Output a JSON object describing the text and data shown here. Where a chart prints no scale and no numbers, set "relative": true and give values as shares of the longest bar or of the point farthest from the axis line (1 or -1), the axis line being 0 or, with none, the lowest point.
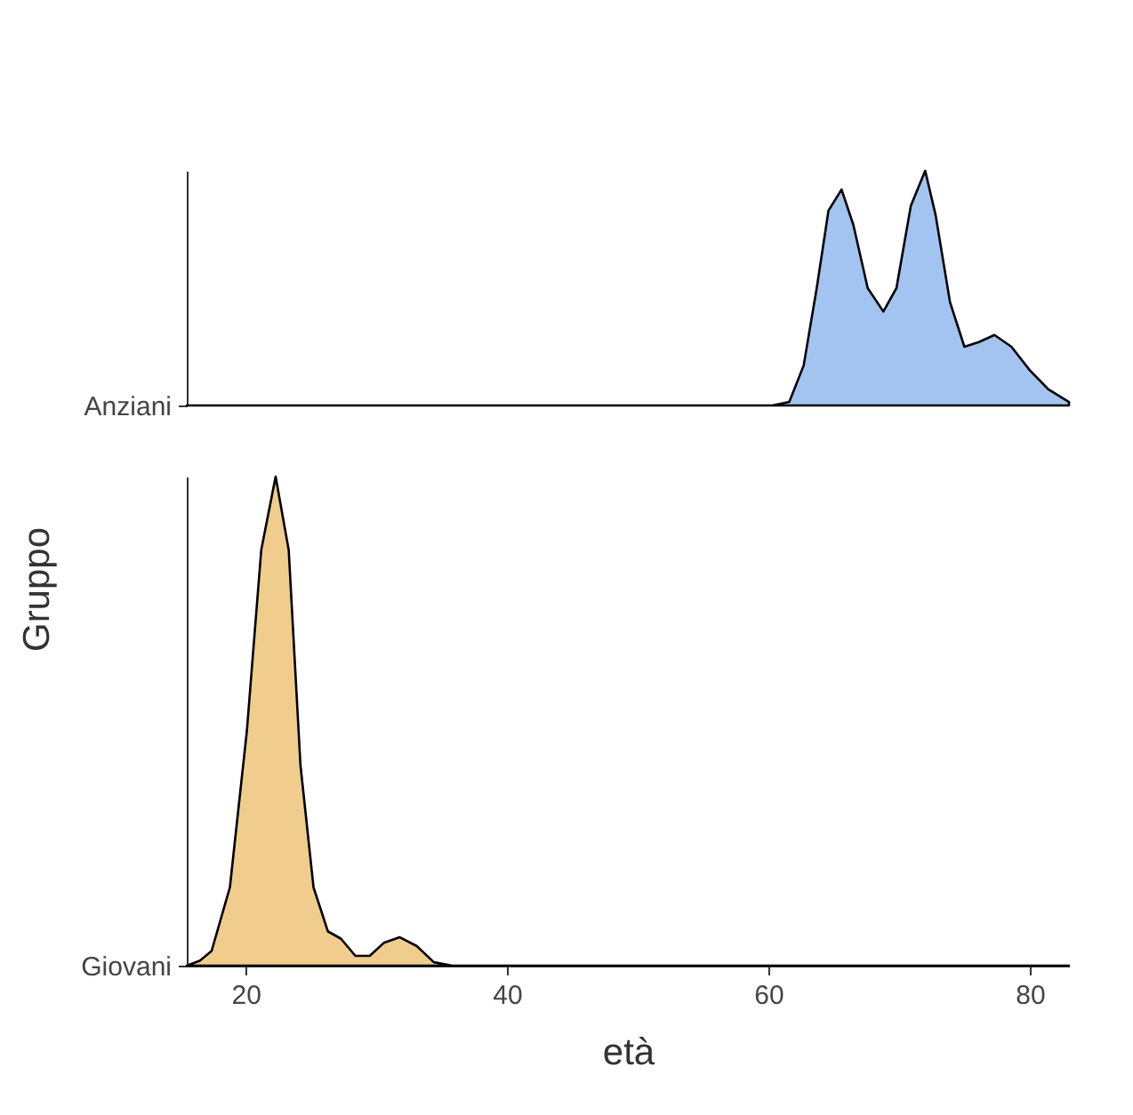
{
  "chart_data": [
    {
      "type": "area",
      "relative": true,
      "xlim": [
        15.5,
        83
      ],
      "xticks": [
        20,
        40,
        60,
        80
      ],
      "grid": false,
      "tick_labels": "y",
      "series": [
        {
          "name": "Anziani",
          "color": "#a3c4f0",
          "x": [
            15.5,
            60.3,
            61.6,
            62.7,
            63.7,
            64.6,
            65.6,
            66.5,
            67.6,
            68.8,
            69.8,
            70.9,
            72.0,
            72.8,
            73.9,
            75.0,
            76.1,
            77.3,
            78.6,
            80.0,
            81.4,
            83
          ],
          "values": [
            0,
            0,
            0.015,
            0.17,
            0.5,
            0.83,
            0.92,
            0.77,
            0.5,
            0.4,
            0.5,
            0.85,
            1.0,
            0.81,
            0.44,
            0.25,
            0.27,
            0.3,
            0.25,
            0.15,
            0.07,
            0.015
          ]
        }
      ]
    },
    {
      "type": "area",
      "relative": true,
      "xlabel": "età",
      "ylabel": "Gruppo",
      "xlim": [
        15.5,
        83
      ],
      "xticks": [
        20,
        40,
        60,
        80
      ],
      "grid": false,
      "series": [
        {
          "name": "Giovani",
          "color": "#f0cd8c",
          "x": [
            15.5,
            16.5,
            17.4,
            18.8,
            20.1,
            21.2,
            22.3,
            23.3,
            24.2,
            25.2,
            26.3,
            27.3,
            28.4,
            29.5,
            30.6,
            31.8,
            33.1,
            34.4,
            35.8,
            83
          ],
          "values": [
            0,
            0.01,
            0.03,
            0.16,
            0.48,
            0.85,
            1.0,
            0.85,
            0.41,
            0.16,
            0.07,
            0.055,
            0.02,
            0.02,
            0.047,
            0.058,
            0.04,
            0.007,
            0,
            0
          ]
        }
      ]
    }
  ]
}
